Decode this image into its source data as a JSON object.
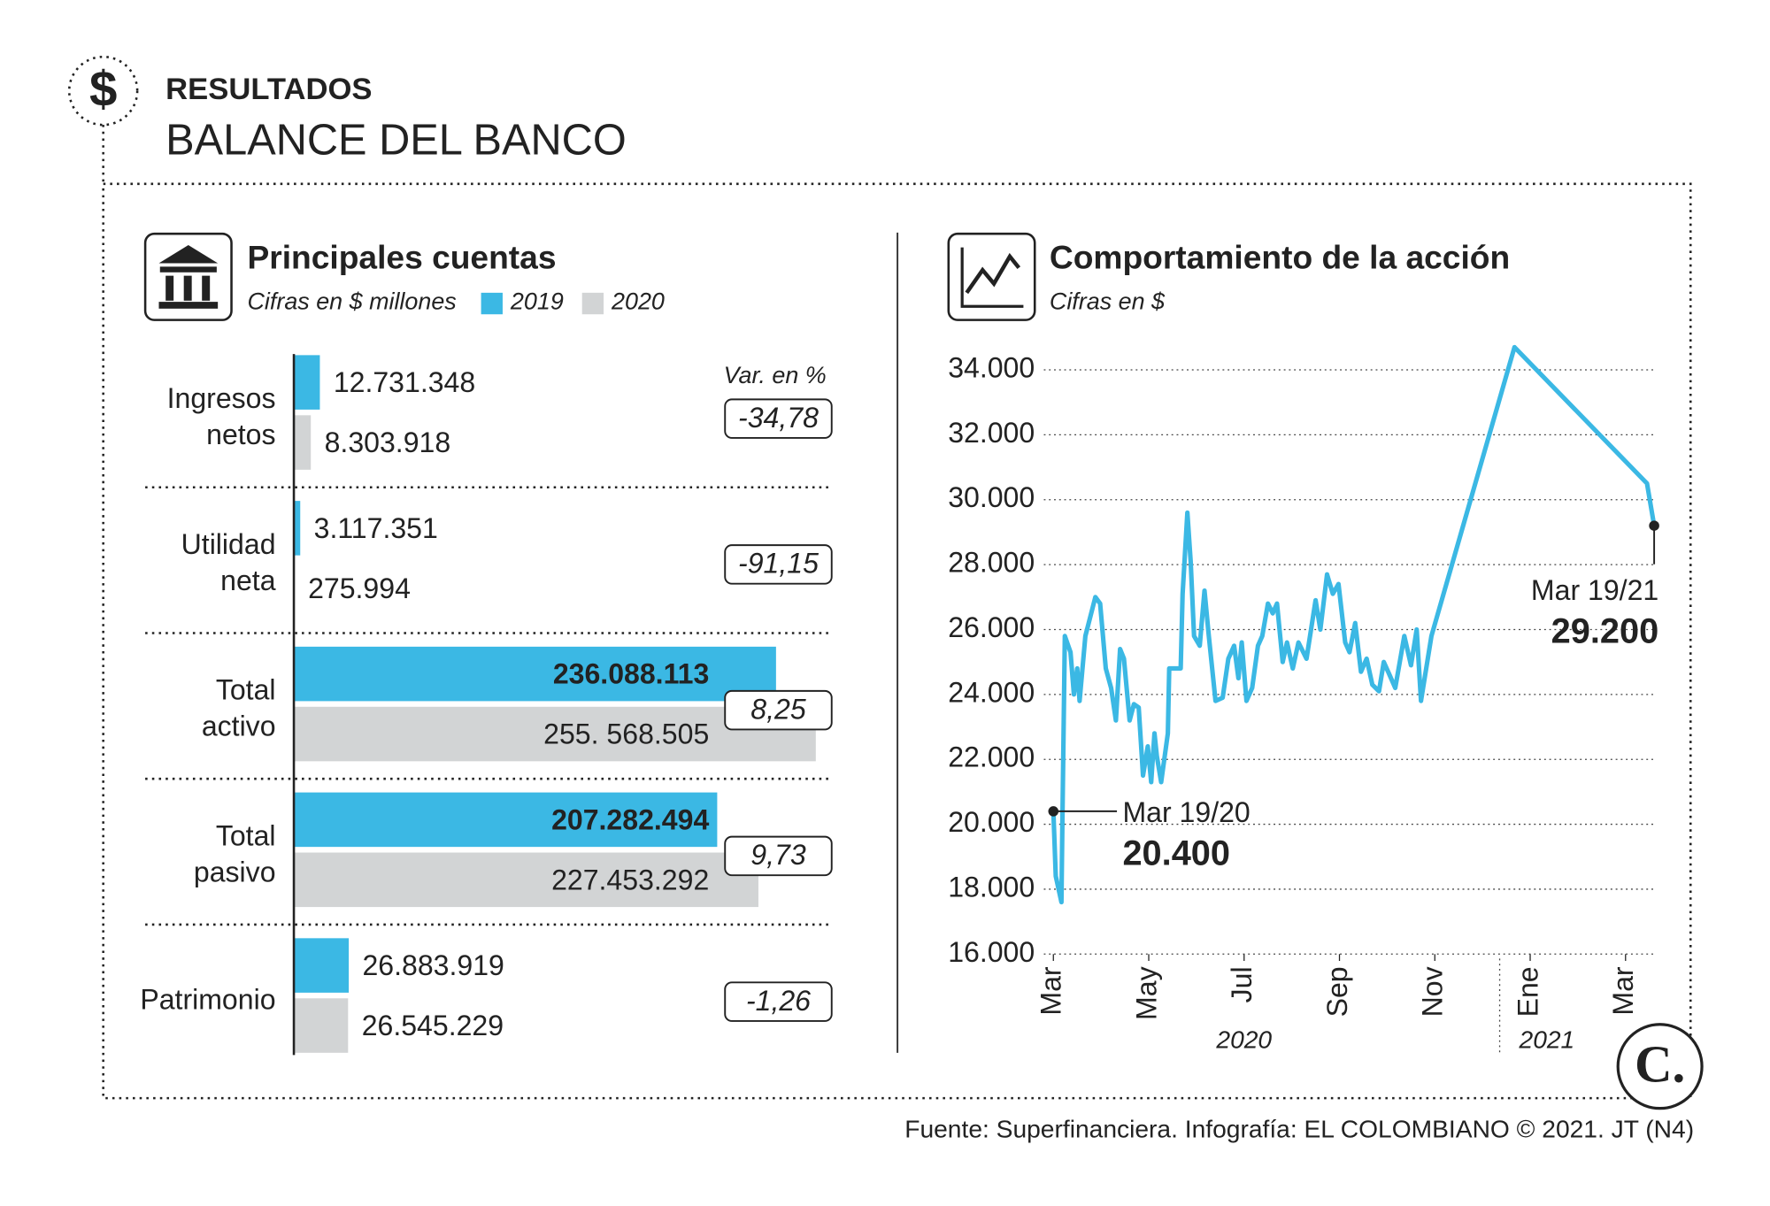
{
  "header": {
    "kicker": "RESULTADOS",
    "title": "BALANCE DEL BANCO"
  },
  "footer": "Fuente: Superfinanciera. Infografía: EL COLOMBIANO © 2021. JT (N4)",
  "logo": "C.",
  "chart_data": [
    {
      "type": "hbar",
      "title": "Principales cuentas",
      "subtitle": "Cifras en $ millones",
      "categories": [
        [
          "Ingresos",
          "netos"
        ],
        [
          "Utilidad",
          "neta"
        ],
        [
          "Total",
          "activo"
        ],
        [
          "Total",
          "pasivo"
        ],
        [
          "Patrimonio"
        ]
      ],
      "xlim": [
        0,
        260000000
      ],
      "series": [
        {
          "name": "2019",
          "color": "#3bb8e4",
          "inside_label_color": "#ffffff",
          "values": [
            12731348,
            3117351,
            236088113,
            207282494,
            26883919
          ],
          "value_labels": [
            "12.731.348",
            "3.117.351",
            "236.088.113",
            "207.282.494",
            "26.883.919"
          ]
        },
        {
          "name": "2020",
          "color": "#d2d4d5",
          "inside_label_color": "#222222",
          "values": [
            8303918,
            275994,
            255568505,
            227453292,
            26545229
          ],
          "value_labels": [
            "8.303.918",
            "275.994",
            "255. 568.505",
            "227.453.292",
            "26.545.229"
          ]
        }
      ],
      "variation": {
        "title": "Var. en %",
        "values": [
          -34.78,
          -91.15,
          8.25,
          9.73,
          -1.26
        ],
        "value_labels": [
          "-34,78",
          "-91,15",
          "8,25",
          "9,73",
          "-1,26"
        ],
        "negative_color": "#e8202a",
        "positive_color": "#222222"
      }
    },
    {
      "type": "line",
      "title": "Comportamiento de la acción",
      "subtitle": "Cifras en $",
      "color": "#3bb8e4",
      "grid": true,
      "xlim": [
        -0.2,
        12.65
      ],
      "ylim": [
        16000,
        34000
      ],
      "yticks": [
        {
          "value": 16000,
          "label": "16.000"
        },
        {
          "value": 18000,
          "label": "18.000"
        },
        {
          "value": 20000,
          "label": "20.000"
        },
        {
          "value": 22000,
          "label": "22.000"
        },
        {
          "value": 24000,
          "label": "24.000"
        },
        {
          "value": 26000,
          "label": "26.000"
        },
        {
          "value": 28000,
          "label": "28.000"
        },
        {
          "value": 30000,
          "label": "30.000"
        },
        {
          "value": 32000,
          "label": "32.000"
        },
        {
          "value": 34000,
          "label": "34.000"
        }
      ],
      "xticks": [
        {
          "value": 0,
          "label": "Mar"
        },
        {
          "value": 2,
          "label": "May"
        },
        {
          "value": 4,
          "label": "Jul"
        },
        {
          "value": 6,
          "label": "Sep"
        },
        {
          "value": 8,
          "label": "Nov"
        },
        {
          "value": 10,
          "label": "Ene"
        },
        {
          "value": 12,
          "label": "Mar"
        }
      ],
      "year_labels": [
        {
          "value": 4,
          "label": "2020"
        },
        {
          "value": 10.35,
          "label": "2021"
        }
      ],
      "year_breaks": [
        9.36
      ],
      "x": [
        0,
        0.05,
        0.17,
        0.19,
        0.24,
        0.36,
        0.43,
        0.5,
        0.55,
        0.67,
        0.88,
        0.98,
        1.1,
        1.21,
        1.31,
        1.4,
        1.48,
        1.6,
        1.69,
        1.79,
        1.88,
        1.98,
        2.05,
        2.12,
        2.17,
        2.26,
        2.4,
        2.43,
        2.67,
        2.71,
        2.81,
        2.88,
        2.95,
        3.07,
        3.17,
        3.26,
        3.4,
        3.55,
        3.67,
        3.79,
        3.88,
        3.95,
        4.05,
        4.17,
        4.29,
        4.38,
        4.5,
        4.6,
        4.69,
        4.81,
        4.9,
        5.02,
        5.14,
        5.31,
        5.5,
        5.6,
        5.74,
        5.86,
        5.98,
        6.12,
        6.21,
        6.33,
        6.45,
        6.57,
        6.69,
        6.83,
        6.93,
        7.05,
        7.17,
        7.36,
        7.5,
        7.62,
        7.71,
        7.93,
        9.67,
        12.45,
        12.6
      ],
      "values": [
        20400,
        18400,
        17600,
        20200,
        25800,
        25300,
        24000,
        24800,
        23800,
        25800,
        27000,
        26800,
        24800,
        24200,
        23200,
        25400,
        25100,
        23200,
        23700,
        23600,
        21500,
        22400,
        21300,
        22800,
        22100,
        21300,
        22800,
        24800,
        24800,
        27100,
        29600,
        28100,
        25800,
        25500,
        27200,
        25800,
        23800,
        23900,
        25100,
        25500,
        24500,
        25600,
        23800,
        24200,
        25500,
        25800,
        26800,
        26500,
        26800,
        25000,
        25600,
        24800,
        25600,
        25100,
        26900,
        26000,
        27700,
        27100,
        27400,
        25600,
        25300,
        26200,
        24700,
        25100,
        24300,
        24100,
        25000,
        24600,
        24200,
        25800,
        24900,
        26000,
        23800,
        25800,
        34700,
        30500,
        29200
      ],
      "annotations": [
        {
          "label": "Mar 19/20",
          "x": 0,
          "value": 20400,
          "value_label": "20.400"
        },
        {
          "label": "Mar 19/21",
          "x": 12.6,
          "value": 29200,
          "value_label": "29.200"
        }
      ]
    }
  ]
}
